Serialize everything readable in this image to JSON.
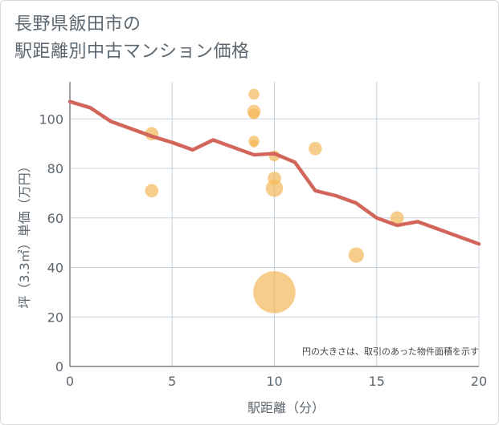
{
  "header": {
    "title_line1": "長野県飯田市の",
    "title_line2": "駅距離別中古マンション価格"
  },
  "chart_data": {
    "type": "scatter",
    "title": "長野県飯田市の駅距離別中古マンション価格",
    "xlabel": "駅距離（分）",
    "ylabel": "坪（3.3㎡）単価（万円）",
    "xlim": [
      0,
      20
    ],
    "ylim": [
      0,
      115
    ],
    "xticks": [
      0,
      5,
      10,
      15,
      20
    ],
    "yticks": [
      0,
      20,
      40,
      60,
      80,
      100
    ],
    "grid": true,
    "note": "円の大きさは、取引のあった物件面積を示す",
    "colors": {
      "bubble": "#f3b85a",
      "line": "#d2665a",
      "grid": "#c7d3df"
    },
    "bubbles": [
      {
        "x": 4,
        "y": 94,
        "size": 3
      },
      {
        "x": 4,
        "y": 71,
        "size": 3
      },
      {
        "x": 9,
        "y": 110,
        "size": 2
      },
      {
        "x": 9,
        "y": 103,
        "size": 3
      },
      {
        "x": 9,
        "y": 102,
        "size": 2
      },
      {
        "x": 9,
        "y": 91,
        "size": 2
      },
      {
        "x": 9,
        "y": 90,
        "size": 1
      },
      {
        "x": 10,
        "y": 85,
        "size": 2
      },
      {
        "x": 10,
        "y": 76,
        "size": 3
      },
      {
        "x": 10,
        "y": 72,
        "size": 5
      },
      {
        "x": 10,
        "y": 30,
        "size": 30
      },
      {
        "x": 12,
        "y": 88,
        "size": 3
      },
      {
        "x": 14,
        "y": 45,
        "size": 4
      },
      {
        "x": 16,
        "y": 60,
        "size": 3
      }
    ],
    "series": [
      {
        "name": "trend",
        "x": [
          0,
          1,
          2,
          3,
          4,
          5,
          6,
          7,
          8,
          9,
          10,
          11,
          12,
          13,
          14,
          15,
          16,
          17,
          18,
          19,
          20
        ],
        "values": [
          107,
          104.5,
          99,
          96,
          93,
          90.5,
          87.5,
          91.5,
          88.5,
          85.5,
          86,
          82.5,
          71,
          69,
          66,
          60,
          57,
          58.5,
          55.5,
          52.5,
          49.5
        ]
      }
    ]
  }
}
